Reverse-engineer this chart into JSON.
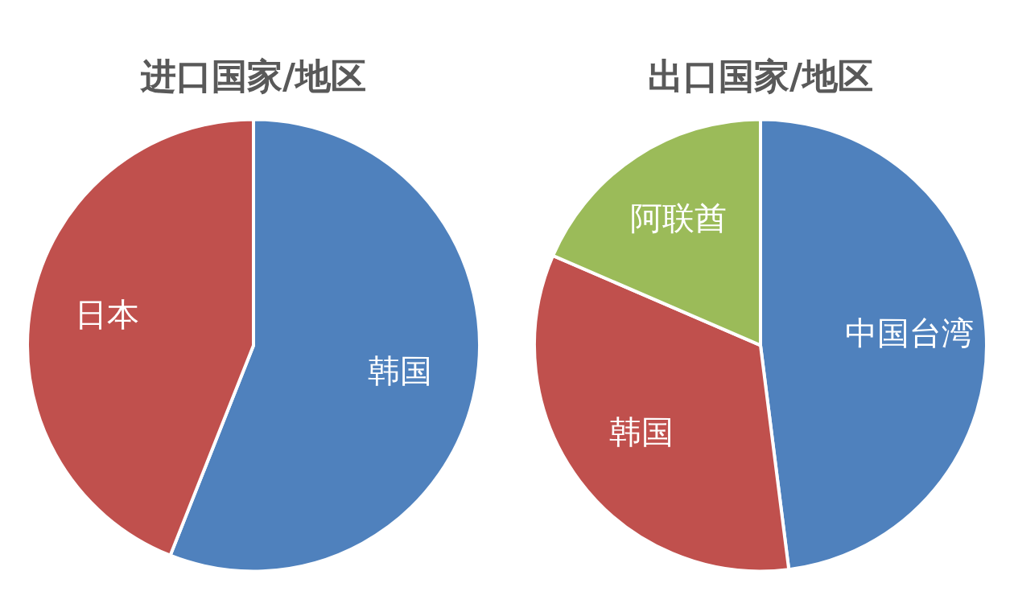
{
  "chart_data": [
    {
      "type": "pie",
      "title": "进口国家/地区",
      "categories": [
        "韩国",
        "日本"
      ],
      "values": [
        56,
        44
      ],
      "colors": [
        "#4f81bd",
        "#c0504d"
      ],
      "legend": false
    },
    {
      "type": "pie",
      "title": "出口国家/地区",
      "categories": [
        "中国台湾",
        "韩国",
        "阿联酋"
      ],
      "values": [
        48,
        33.5,
        18.5
      ],
      "colors": [
        "#4f81bd",
        "#c0504d",
        "#9bbb59"
      ],
      "legend": false
    }
  ]
}
